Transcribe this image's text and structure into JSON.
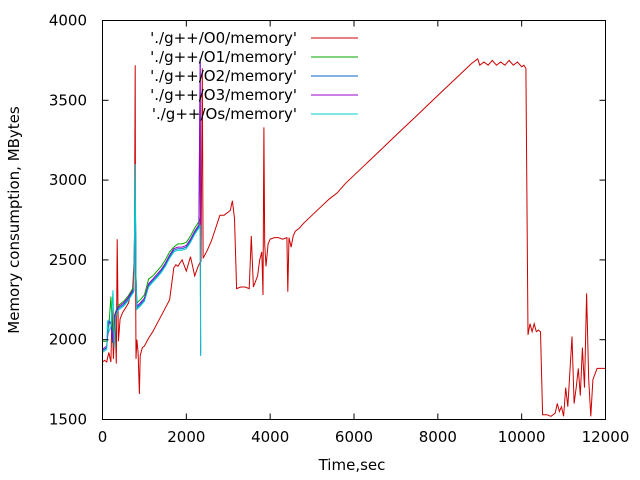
{
  "chart_data": {
    "type": "line",
    "xlabel": "Time,sec",
    "ylabel": "Memory consumption, MBytes",
    "xlim": [
      0,
      12000
    ],
    "ylim": [
      1500,
      4000
    ],
    "x_ticks": [
      0,
      2000,
      4000,
      6000,
      8000,
      10000,
      12000
    ],
    "y_ticks": [
      1500,
      2000,
      2500,
      3000,
      3500,
      4000
    ],
    "x_tick_labels": [
      "0",
      "2000",
      "4000",
      "6000",
      "8000",
      "10000",
      "12000"
    ],
    "y_tick_labels": [
      "1500",
      "2000",
      "2500",
      "3000",
      "3500",
      "4000"
    ],
    "grid": false,
    "legend_position": "top-left",
    "series": [
      {
        "name": "'./g++/O0/memory'",
        "color": "#cc0000",
        "points": [
          [
            0,
            1860
          ],
          [
            50,
            1870
          ],
          [
            100,
            1860
          ],
          [
            150,
            1920
          ],
          [
            200,
            1860
          ],
          [
            230,
            2200
          ],
          [
            260,
            1880
          ],
          [
            300,
            2150
          ],
          [
            330,
            1850
          ],
          [
            350,
            2630
          ],
          [
            380,
            1990
          ],
          [
            420,
            2130
          ],
          [
            480,
            2170
          ],
          [
            550,
            2200
          ],
          [
            620,
            2230
          ],
          [
            680,
            2300
          ],
          [
            720,
            2320
          ],
          [
            760,
            2540
          ],
          [
            780,
            3720
          ],
          [
            790,
            2400
          ],
          [
            800,
            1880
          ],
          [
            820,
            2000
          ],
          [
            850,
            1920
          ],
          [
            880,
            1660
          ],
          [
            900,
            1900
          ],
          [
            950,
            1950
          ],
          [
            1000,
            1960
          ],
          [
            1100,
            2010
          ],
          [
            1200,
            2050
          ],
          [
            1300,
            2100
          ],
          [
            1400,
            2150
          ],
          [
            1500,
            2200
          ],
          [
            1600,
            2250
          ],
          [
            1700,
            2450
          ],
          [
            1750,
            2470
          ],
          [
            1800,
            2460
          ],
          [
            1900,
            2500
          ],
          [
            2000,
            2430
          ],
          [
            2100,
            2520
          ],
          [
            2200,
            2400
          ],
          [
            2280,
            2460
          ],
          [
            2320,
            2480
          ],
          [
            2350,
            2490
          ],
          [
            2380,
            3700
          ],
          [
            2400,
            2510
          ],
          [
            2500,
            2560
          ],
          [
            2600,
            2620
          ],
          [
            2700,
            2700
          ],
          [
            2800,
            2780
          ],
          [
            2900,
            2780
          ],
          [
            3000,
            2800
          ],
          [
            3050,
            2810
          ],
          [
            3100,
            2870
          ],
          [
            3150,
            2760
          ],
          [
            3200,
            2320
          ],
          [
            3300,
            2330
          ],
          [
            3400,
            2330
          ],
          [
            3500,
            2320
          ],
          [
            3550,
            2650
          ],
          [
            3600,
            2330
          ],
          [
            3700,
            2400
          ],
          [
            3750,
            2500
          ],
          [
            3800,
            2550
          ],
          [
            3830,
            2280
          ],
          [
            3850,
            3330
          ],
          [
            3870,
            2600
          ],
          [
            3900,
            2460
          ],
          [
            3950,
            2600
          ],
          [
            4000,
            2630
          ],
          [
            4100,
            2640
          ],
          [
            4200,
            2640
          ],
          [
            4300,
            2630
          ],
          [
            4400,
            2640
          ],
          [
            4420,
            2300
          ],
          [
            4450,
            2640
          ],
          [
            4500,
            2580
          ],
          [
            4550,
            2650
          ],
          [
            4600,
            2680
          ],
          [
            4700,
            2700
          ],
          [
            4800,
            2730
          ],
          [
            5000,
            2780
          ],
          [
            5200,
            2830
          ],
          [
            5400,
            2880
          ],
          [
            5600,
            2920
          ],
          [
            5700,
            2950
          ],
          [
            5800,
            2980
          ],
          [
            6000,
            3030
          ],
          [
            6200,
            3080
          ],
          [
            6400,
            3130
          ],
          [
            6600,
            3180
          ],
          [
            6800,
            3230
          ],
          [
            7000,
            3280
          ],
          [
            7200,
            3330
          ],
          [
            7400,
            3380
          ],
          [
            7600,
            3430
          ],
          [
            7800,
            3480
          ],
          [
            8000,
            3530
          ],
          [
            8200,
            3580
          ],
          [
            8400,
            3630
          ],
          [
            8600,
            3680
          ],
          [
            8800,
            3730
          ],
          [
            8950,
            3760
          ],
          [
            9000,
            3720
          ],
          [
            9100,
            3740
          ],
          [
            9200,
            3720
          ],
          [
            9300,
            3750
          ],
          [
            9400,
            3720
          ],
          [
            9500,
            3740
          ],
          [
            9600,
            3720
          ],
          [
            9700,
            3750
          ],
          [
            9800,
            3720
          ],
          [
            9900,
            3740
          ],
          [
            10000,
            3710
          ],
          [
            10050,
            3720
          ],
          [
            10100,
            3700
          ],
          [
            10150,
            2030
          ],
          [
            10200,
            2100
          ],
          [
            10250,
            2050
          ],
          [
            10300,
            2100
          ],
          [
            10350,
            2050
          ],
          [
            10400,
            2060
          ],
          [
            10450,
            2050
          ],
          [
            10500,
            1530
          ],
          [
            10600,
            1530
          ],
          [
            10700,
            1520
          ],
          [
            10800,
            1540
          ],
          [
            10850,
            1600
          ],
          [
            10900,
            1550
          ],
          [
            10950,
            1580
          ],
          [
            11000,
            1520
          ],
          [
            11050,
            1700
          ],
          [
            11100,
            1580
          ],
          [
            11150,
            1800
          ],
          [
            11200,
            2020
          ],
          [
            11250,
            1600
          ],
          [
            11300,
            1700
          ],
          [
            11350,
            1820
          ],
          [
            11400,
            1650
          ],
          [
            11450,
            1950
          ],
          [
            11500,
            1700
          ],
          [
            11550,
            2290
          ],
          [
            11600,
            1750
          ],
          [
            11650,
            1520
          ],
          [
            11700,
            1750
          ],
          [
            11800,
            1820
          ],
          [
            12000,
            1820
          ]
        ]
      },
      {
        "name": "'./g++/O1/memory'",
        "color": "#00aa00",
        "points": [
          [
            0,
            1990
          ],
          [
            100,
            1990
          ],
          [
            150,
            2080
          ],
          [
            200,
            2270
          ],
          [
            240,
            2000
          ],
          [
            280,
            2150
          ],
          [
            320,
            2180
          ],
          [
            360,
            2210
          ],
          [
            400,
            2220
          ],
          [
            500,
            2240
          ],
          [
            600,
            2270
          ],
          [
            700,
            2310
          ],
          [
            750,
            2330
          ],
          [
            780,
            3000
          ],
          [
            800,
            2400
          ],
          [
            820,
            2230
          ],
          [
            900,
            2250
          ],
          [
            1000,
            2280
          ],
          [
            1100,
            2380
          ],
          [
            1200,
            2400
          ],
          [
            1300,
            2430
          ],
          [
            1400,
            2460
          ],
          [
            1500,
            2500
          ],
          [
            1600,
            2550
          ],
          [
            1700,
            2580
          ],
          [
            1800,
            2600
          ],
          [
            1900,
            2600
          ],
          [
            2000,
            2610
          ],
          [
            2100,
            2650
          ],
          [
            2200,
            2700
          ],
          [
            2300,
            2740
          ],
          [
            2330,
            2760
          ],
          [
            2340,
            1920
          ]
        ]
      },
      {
        "name": "'./g++/O2/memory'",
        "color": "#0066cc",
        "points": [
          [
            0,
            1930
          ],
          [
            100,
            1950
          ],
          [
            150,
            2120
          ],
          [
            200,
            2100
          ],
          [
            240,
            1980
          ],
          [
            280,
            2130
          ],
          [
            320,
            2160
          ],
          [
            360,
            2190
          ],
          [
            400,
            2200
          ],
          [
            500,
            2220
          ],
          [
            600,
            2250
          ],
          [
            700,
            2290
          ],
          [
            750,
            2310
          ],
          [
            780,
            2990
          ],
          [
            800,
            2380
          ],
          [
            820,
            2200
          ],
          [
            900,
            2220
          ],
          [
            1000,
            2250
          ],
          [
            1100,
            2340
          ],
          [
            1200,
            2370
          ],
          [
            1300,
            2400
          ],
          [
            1400,
            2430
          ],
          [
            1500,
            2470
          ],
          [
            1600,
            2520
          ],
          [
            1700,
            2560
          ],
          [
            1800,
            2570
          ],
          [
            1900,
            2570
          ],
          [
            2000,
            2580
          ],
          [
            2100,
            2620
          ],
          [
            2200,
            2670
          ],
          [
            2300,
            2710
          ],
          [
            2330,
            3760
          ],
          [
            2340,
            1900
          ]
        ]
      },
      {
        "name": "'./g++/O3/memory'",
        "color": "#9900cc",
        "points": [
          [
            0,
            1940
          ],
          [
            100,
            1960
          ],
          [
            150,
            2100
          ],
          [
            200,
            2110
          ],
          [
            240,
            1990
          ],
          [
            280,
            2140
          ],
          [
            320,
            2170
          ],
          [
            360,
            2200
          ],
          [
            400,
            2210
          ],
          [
            500,
            2230
          ],
          [
            600,
            2260
          ],
          [
            700,
            2300
          ],
          [
            750,
            2320
          ],
          [
            780,
            2980
          ],
          [
            800,
            2390
          ],
          [
            820,
            2210
          ],
          [
            900,
            2230
          ],
          [
            1000,
            2260
          ],
          [
            1100,
            2350
          ],
          [
            1200,
            2380
          ],
          [
            1300,
            2410
          ],
          [
            1400,
            2440
          ],
          [
            1500,
            2480
          ],
          [
            1600,
            2530
          ],
          [
            1700,
            2570
          ],
          [
            1800,
            2580
          ],
          [
            1900,
            2580
          ],
          [
            2000,
            2590
          ],
          [
            2100,
            2630
          ],
          [
            2200,
            2680
          ],
          [
            2300,
            2720
          ],
          [
            2330,
            3740
          ],
          [
            2340,
            1910
          ]
        ]
      },
      {
        "name": "'./g++/Os/memory'",
        "color": "#00cccc",
        "points": [
          [
            0,
            1920
          ],
          [
            100,
            1940
          ],
          [
            120,
            2120
          ],
          [
            150,
            2050
          ],
          [
            200,
            2080
          ],
          [
            250,
            2310
          ],
          [
            280,
            1950
          ],
          [
            320,
            2150
          ],
          [
            360,
            2180
          ],
          [
            400,
            2190
          ],
          [
            500,
            2210
          ],
          [
            600,
            2240
          ],
          [
            700,
            2280
          ],
          [
            750,
            2300
          ],
          [
            780,
            3100
          ],
          [
            800,
            2370
          ],
          [
            820,
            2190
          ],
          [
            900,
            2210
          ],
          [
            1000,
            2240
          ],
          [
            1100,
            2330
          ],
          [
            1200,
            2360
          ],
          [
            1300,
            2390
          ],
          [
            1400,
            2420
          ],
          [
            1500,
            2460
          ],
          [
            1600,
            2510
          ],
          [
            1700,
            2550
          ],
          [
            1800,
            2560
          ],
          [
            1900,
            2560
          ],
          [
            2000,
            2570
          ],
          [
            2100,
            2610
          ],
          [
            2200,
            2660
          ],
          [
            2300,
            2700
          ],
          [
            2330,
            2720
          ],
          [
            2340,
            1900
          ]
        ]
      }
    ]
  }
}
